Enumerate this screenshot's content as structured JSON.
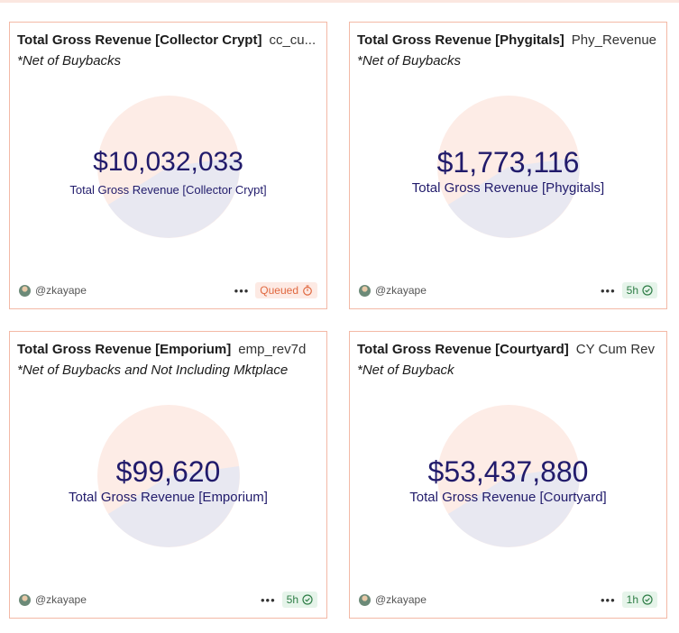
{
  "colors": {
    "card_border": "#f3b9a6",
    "value_text": "#211b6b",
    "pie_primary": "#fdece6",
    "pie_secondary": "#e8e8f1",
    "queued": "#e0683f",
    "done": "#2e7d46"
  },
  "cards": [
    {
      "title": "Total Gross Revenue [Collector Crypt]",
      "query_name": "cc_cu...",
      "subtitle": "*Net of Buybacks",
      "value": "$10,032,033",
      "caption": "Total Gross Revenue [Collector Crypt]",
      "author": "@zkayape",
      "more": "•••",
      "status": "Queued",
      "status_icon": "timer-icon"
    },
    {
      "title": "Total Gross Revenue [Phygitals]",
      "query_name": "Phy_Revenue",
      "subtitle": "*Net of Buybacks",
      "value": "$1,773,116",
      "caption": "Total Gross Revenue [Phygitals]",
      "author": "@zkayape",
      "more": "•••",
      "status": "5h",
      "status_icon": "check-circle-icon"
    },
    {
      "title": "Total Gross Revenue [Emporium]",
      "query_name": "emp_rev7d",
      "subtitle": "*Net of Buybacks and Not Including Mktplace",
      "value": "$99,620",
      "caption": "Total Gross Revenue [Emporium]",
      "author": "@zkayape",
      "more": "•••",
      "status": "5h",
      "status_icon": "check-circle-icon"
    },
    {
      "title": "Total Gross Revenue [Courtyard]",
      "query_name": "CY Cum Rev",
      "subtitle": "*Net of Buyback",
      "value": "$53,437,880",
      "caption": "Total Gross Revenue [Courtyard]",
      "author": "@zkayape",
      "more": "•••",
      "status": "1h",
      "status_icon": "check-circle-icon"
    }
  ]
}
